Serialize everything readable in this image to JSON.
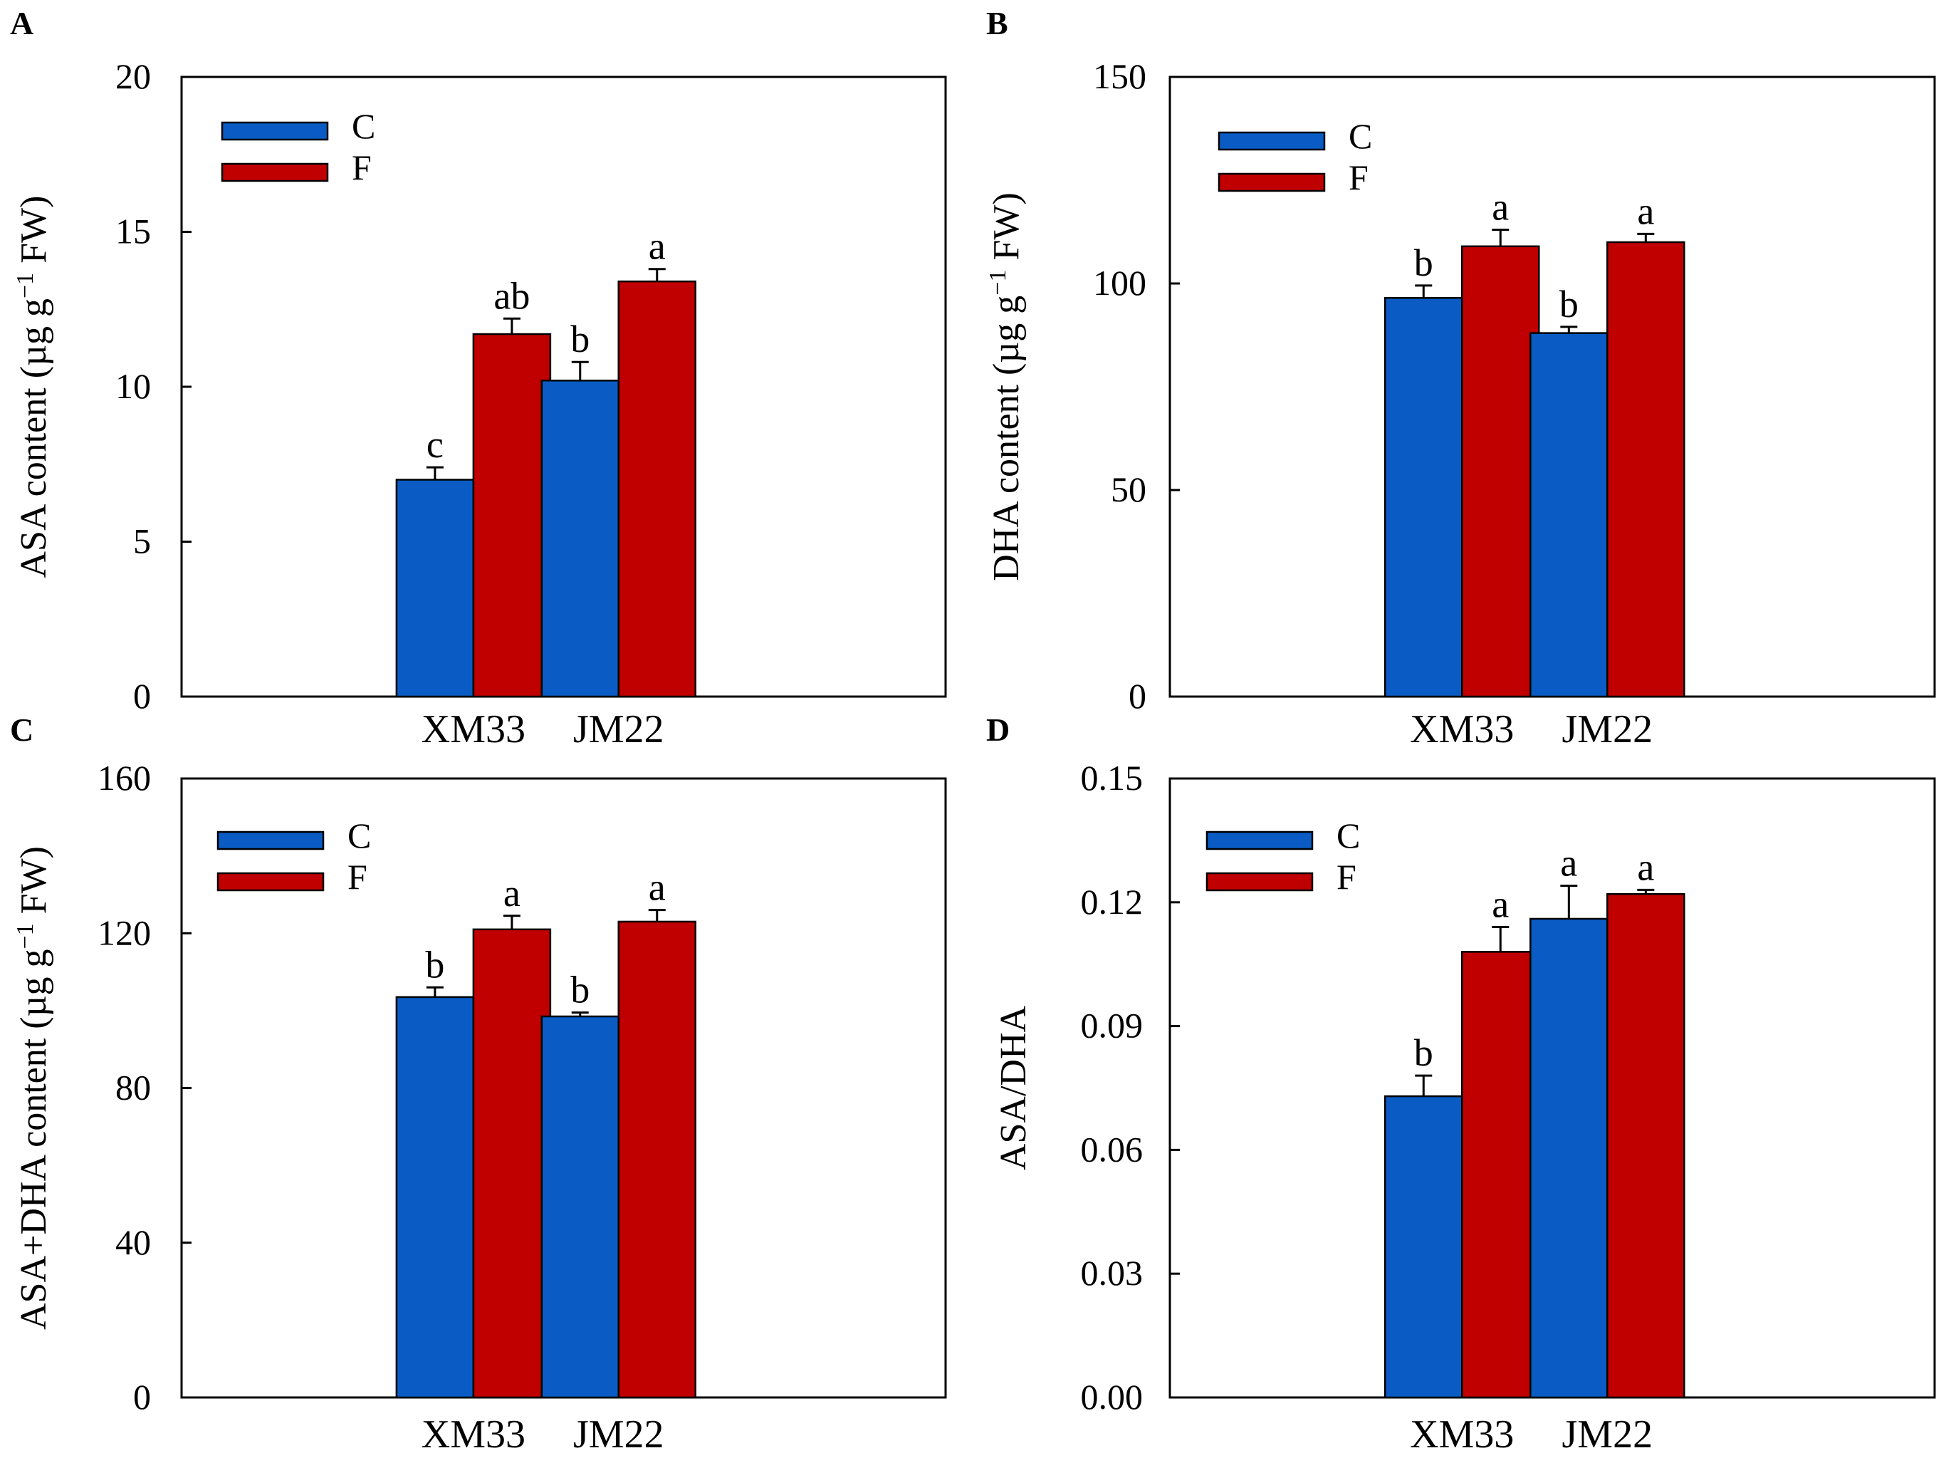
{
  "colors": {
    "C": "#0a5cc4",
    "F": "#c00000"
  },
  "chart_data": [
    {
      "panel": "A",
      "type": "bar",
      "ylabel_main": "ASA content (µg g",
      "ylabel_sup": "−1",
      "ylabel_tail": " FW)",
      "categories": [
        "XM33",
        "JM22"
      ],
      "ylim": [
        0,
        20
      ],
      "yticks": [
        "0",
        "5",
        "10",
        "15",
        "20"
      ],
      "series": [
        {
          "name": "C",
          "values": [
            7.0,
            10.2
          ],
          "errors": [
            0.4,
            0.6
          ],
          "labels": [
            "c",
            "b"
          ]
        },
        {
          "name": "F",
          "values": [
            11.7,
            13.4
          ],
          "errors": [
            0.5,
            0.4
          ],
          "labels": [
            "ab",
            "a"
          ]
        }
      ]
    },
    {
      "panel": "B",
      "type": "bar",
      "ylabel_main": "DHA content (µg g",
      "ylabel_sup": "−1",
      "ylabel_tail": " FW)",
      "categories": [
        "XM33",
        "JM22"
      ],
      "ylim": [
        0,
        150
      ],
      "yticks": [
        "0",
        "50",
        "100",
        "150"
      ],
      "series": [
        {
          "name": "C",
          "values": [
            96.5,
            88.0
          ],
          "errors": [
            3.0,
            1.5
          ],
          "labels": [
            "b",
            "b"
          ]
        },
        {
          "name": "F",
          "values": [
            109.0,
            110.0
          ],
          "errors": [
            4.0,
            2.0
          ],
          "labels": [
            "a",
            "a"
          ]
        }
      ]
    },
    {
      "panel": "C",
      "type": "bar",
      "ylabel_main": "ASA+DHA content (µg g",
      "ylabel_sup": "−1",
      "ylabel_tail": " FW)",
      "categories": [
        "XM33",
        "JM22"
      ],
      "ylim": [
        0,
        160
      ],
      "yticks": [
        "0",
        "40",
        "80",
        "120",
        "160"
      ],
      "series": [
        {
          "name": "C",
          "values": [
            103.5,
            98.5
          ],
          "errors": [
            2.5,
            1.0
          ],
          "labels": [
            "b",
            "b"
          ]
        },
        {
          "name": "F",
          "values": [
            121.0,
            123.0
          ],
          "errors": [
            3.5,
            3.0
          ],
          "labels": [
            "a",
            "a"
          ]
        }
      ]
    },
    {
      "panel": "D",
      "type": "bar",
      "ylabel_main": "ASA/DHA",
      "ylabel_sup": "",
      "ylabel_tail": "",
      "categories": [
        "XM33",
        "JM22"
      ],
      "ylim": [
        0,
        0.15
      ],
      "yticks": [
        "0.00",
        "0.03",
        "0.06",
        "0.09",
        "0.12",
        "0.15"
      ],
      "series": [
        {
          "name": "C",
          "values": [
            0.073,
            0.116
          ],
          "errors": [
            0.005,
            0.008
          ],
          "labels": [
            "b",
            "a"
          ]
        },
        {
          "name": "F",
          "values": [
            0.108,
            0.122
          ],
          "errors": [
            0.006,
            0.001
          ],
          "labels": [
            "a",
            "a"
          ]
        }
      ]
    }
  ]
}
